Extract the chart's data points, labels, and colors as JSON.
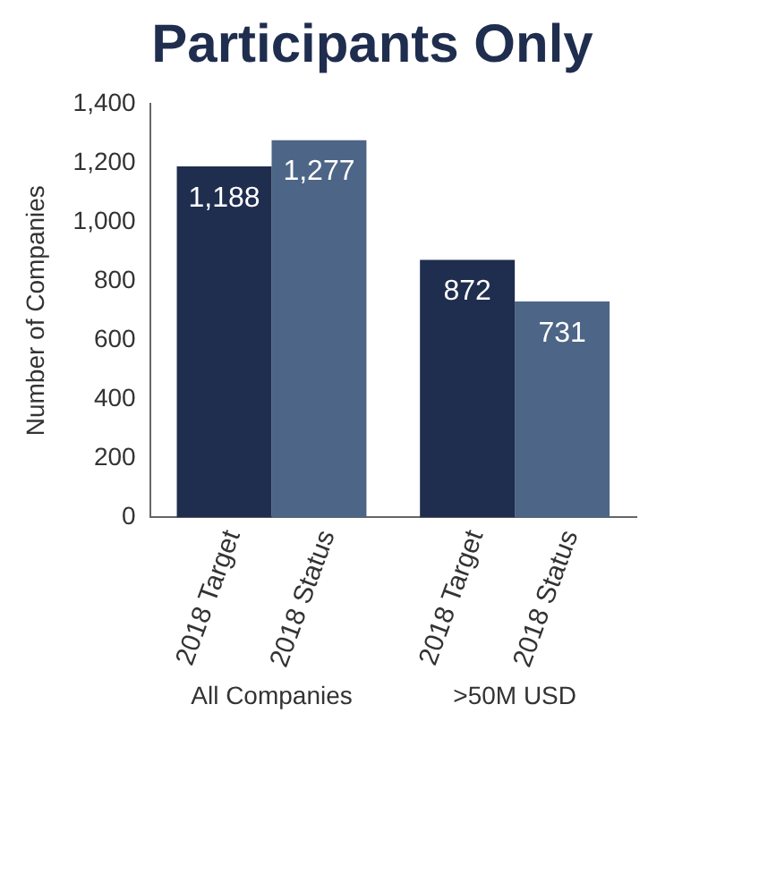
{
  "chart_data": {
    "type": "bar",
    "title": "Participants Only",
    "ylabel": "Number of Companies",
    "categories": [
      "All Companies",
      ">50M USD"
    ],
    "series": [
      {
        "name": "2018 Target",
        "color": "#1f2d4e",
        "values": [
          1188,
          872
        ],
        "value_labels": [
          "1,188",
          "872"
        ]
      },
      {
        "name": "2018 Status",
        "color": "#4d6586",
        "values": [
          1277,
          731
        ],
        "value_labels": [
          "1,277",
          "731"
        ]
      }
    ],
    "ylim": [
      0,
      1400
    ],
    "yticks": [
      0,
      200,
      400,
      600,
      800,
      {
        "value": 1000,
        "label": "1,000"
      },
      {
        "value": 1200,
        "label": "1,200"
      },
      {
        "value": 1400,
        "label": "1,400"
      }
    ],
    "grid": false,
    "legend": false
  }
}
